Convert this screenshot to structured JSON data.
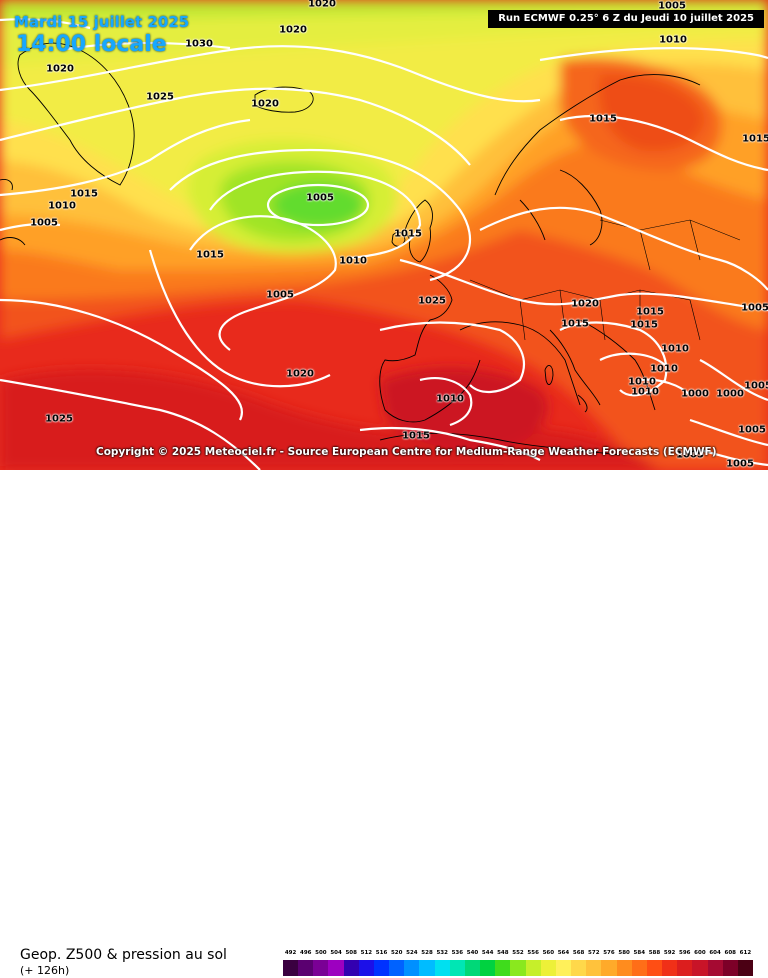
{
  "header": {
    "date": "Mardi 15 juillet 2025",
    "local_time": "14:00 locale",
    "run_info": "Run ECMWF 0.25° 6 Z du Jeudi 10 juillet 2025"
  },
  "copyright": "Copyright © 2025 Meteociel.fr - Source European Centre for Medium-Range Weather Forecasts (ECMWF)",
  "footer": {
    "title": "Geop. Z500 & pression au sol",
    "lead_time": "(+ 126h)"
  },
  "isobar_labels": [
    "1030",
    "1020",
    "1020",
    "1020",
    "1025",
    "1020",
    "1015",
    "1010",
    "1005",
    "1005",
    "1015",
    "1015",
    "1005",
    "1010",
    "1025",
    "1020",
    "1015",
    "1015",
    "1010",
    "1020",
    "1025",
    "1015",
    "1015",
    "1015",
    "1010",
    "1005",
    "1010",
    "1010",
    "1000",
    "1000",
    "1005",
    "1005",
    "1005",
    "1005",
    "1015",
    "1010",
    "1010",
    "1005"
  ],
  "legend": {
    "values": [
      "492",
      "496",
      "500",
      "504",
      "508",
      "512",
      "516",
      "520",
      "524",
      "528",
      "532",
      "536",
      "540",
      "544",
      "548",
      "552",
      "556",
      "560",
      "564",
      "568",
      "572",
      "576",
      "580",
      "584",
      "588",
      "592",
      "596",
      "600",
      "604",
      "608",
      "612"
    ],
    "colors": [
      "#3a0040",
      "#5a0070",
      "#7a0095",
      "#9d00c0",
      "#3300b0",
      "#1c10e8",
      "#0032ff",
      "#0062ff",
      "#0090ff",
      "#00bcff",
      "#00e0f0",
      "#00e6b4",
      "#00d878",
      "#00d240",
      "#3fdc1c",
      "#8ae81e",
      "#c6ef2a",
      "#edf038",
      "#fff05a",
      "#ffd84a",
      "#ffc23c",
      "#ffaa2a",
      "#ff8c1e",
      "#ff6e18",
      "#ff4e14",
      "#f03018",
      "#dc1e1e",
      "#c81428",
      "#a50a32",
      "#7d0028",
      "#4b0014"
    ]
  },
  "colors": {
    "label_blue": "#17a8ff",
    "isobar": "#ffffff"
  }
}
